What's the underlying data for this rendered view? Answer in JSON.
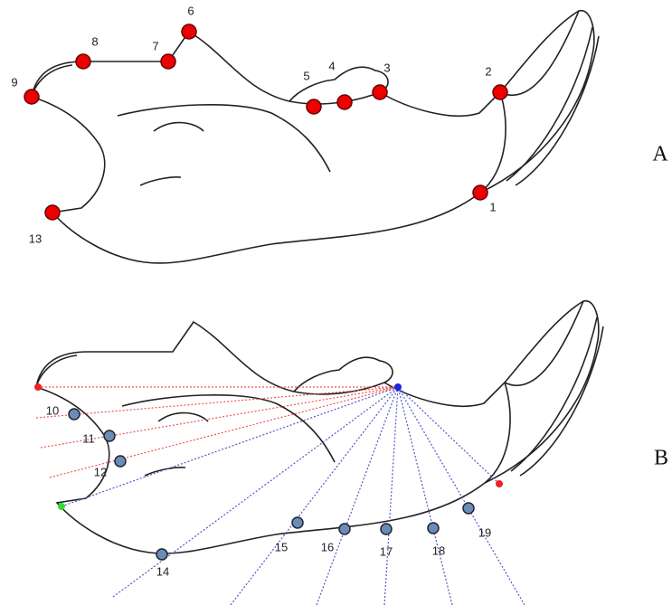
{
  "panels": [
    {
      "label": "A",
      "landmarks": [
        {
          "label": "1"
        },
        {
          "label": "2"
        },
        {
          "label": "3"
        },
        {
          "label": "4"
        },
        {
          "label": "5"
        },
        {
          "label": "6"
        },
        {
          "label": "7"
        },
        {
          "label": "8"
        },
        {
          "label": "9"
        },
        {
          "label": "13"
        }
      ]
    },
    {
      "label": "B",
      "landmarks": [
        {
          "label": "10"
        },
        {
          "label": "11"
        },
        {
          "label": "12"
        },
        {
          "label": "14"
        },
        {
          "label": "15"
        },
        {
          "label": "16"
        },
        {
          "label": "17"
        },
        {
          "label": "18"
        },
        {
          "label": "19"
        }
      ]
    }
  ]
}
